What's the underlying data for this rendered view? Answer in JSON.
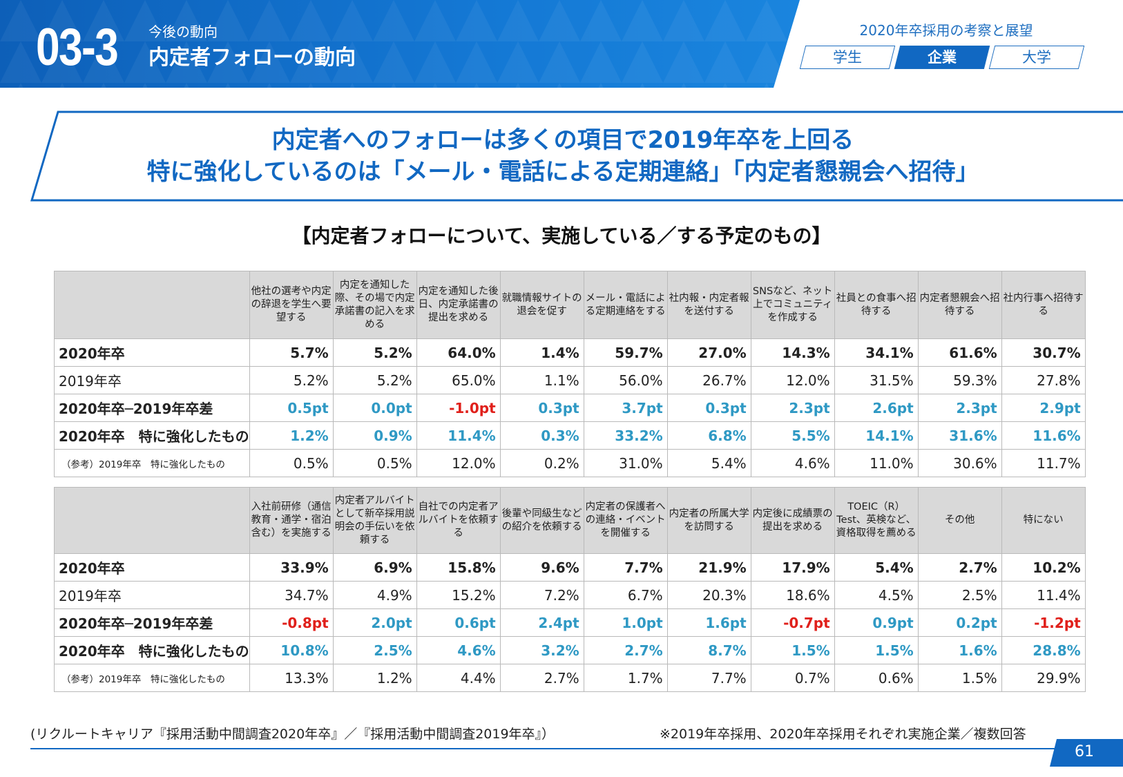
{
  "header": {
    "section_number": "03-3",
    "section_subtitle": "今後の動向",
    "section_title": "内定者フォローの動向",
    "report_title": "2020年卒採用の考察と展望",
    "tabs": [
      {
        "label": "学生",
        "active": false
      },
      {
        "label": "企業",
        "active": true
      },
      {
        "label": "大学",
        "active": false
      }
    ],
    "brand_color": "#1168c2"
  },
  "headline": {
    "line1": "内定者へのフォローは多くの項目で2019年卒を上回る",
    "line2": "特に強化しているのは「メール・電話による定期連絡」「内定者懇親会へ招待」"
  },
  "table_caption": "【内定者フォローについて、実施している／する予定のもの】",
  "tables": [
    {
      "columns": [
        "他社の選考や内定の辞退を学生へ要望する",
        "内定を通知した際、その場で内定承諾書の記入を求める",
        "内定を通知した後日、内定承諾書の提出を求める",
        "就職情報サイトの退会を促す",
        "メール・電話による定期連絡をする",
        "社内報・内定者報を送付する",
        "SNSなど、ネット上でコミュニティを作成する",
        "社員との食事へ招待する",
        "内定者懇親会へ招待する",
        "社内行事へ招待する"
      ],
      "rows": [
        {
          "label": "2020年卒",
          "style": "bold",
          "values": [
            "5.7%",
            "5.2%",
            "64.0%",
            "1.4%",
            "59.7%",
            "27.0%",
            "14.3%",
            "34.1%",
            "61.6%",
            "30.7%"
          ]
        },
        {
          "label": "2019年卒",
          "style": "normal",
          "values": [
            "5.2%",
            "5.2%",
            "65.0%",
            "1.1%",
            "56.0%",
            "26.7%",
            "12.0%",
            "31.5%",
            "59.3%",
            "27.8%"
          ]
        },
        {
          "label": "2020年卒─2019年卒差",
          "style": "diff",
          "values": [
            "0.5pt",
            "0.0pt",
            "-1.0pt",
            "0.3pt",
            "3.7pt",
            "0.3pt",
            "2.3pt",
            "2.6pt",
            "2.3pt",
            "2.9pt"
          ]
        },
        {
          "label": "2020年卒　特に強化したもの",
          "style": "strong",
          "values": [
            "1.2%",
            "0.9%",
            "11.4%",
            "0.3%",
            "33.2%",
            "6.8%",
            "5.5%",
            "14.1%",
            "31.6%",
            "11.6%"
          ]
        },
        {
          "label": "（参考）2019年卒　特に強化したもの",
          "style": "ref",
          "values": [
            "0.5%",
            "0.5%",
            "12.0%",
            "0.2%",
            "31.0%",
            "5.4%",
            "4.6%",
            "11.0%",
            "30.6%",
            "11.7%"
          ]
        }
      ]
    },
    {
      "columns": [
        "入社前研修（通信教育・通学・宿泊含む）を実施する",
        "内定者アルバイトとして新卒採用説明会の手伝いを依頼する",
        "自社での内定者アルバイトを依頼する",
        "後輩や同級生などの紹介を依頼する",
        "内定者の保護者への連絡・イベントを開催する",
        "内定者の所属大学を訪問する",
        "内定後に成績票の提出を求める",
        "TOEIC（R）Test、英検など、資格取得を薦める",
        "その他",
        "特にない"
      ],
      "rows": [
        {
          "label": "2020年卒",
          "style": "bold",
          "values": [
            "33.9%",
            "6.9%",
            "15.8%",
            "9.6%",
            "7.7%",
            "21.9%",
            "17.9%",
            "5.4%",
            "2.7%",
            "10.2%"
          ]
        },
        {
          "label": "2019年卒",
          "style": "normal",
          "values": [
            "34.7%",
            "4.9%",
            "15.2%",
            "7.2%",
            "6.7%",
            "20.3%",
            "18.6%",
            "4.5%",
            "2.5%",
            "11.4%"
          ]
        },
        {
          "label": "2020年卒─2019年卒差",
          "style": "diff",
          "values": [
            "-0.8pt",
            "2.0pt",
            "0.6pt",
            "2.4pt",
            "1.0pt",
            "1.6pt",
            "-0.7pt",
            "0.9pt",
            "0.2pt",
            "-1.2pt"
          ]
        },
        {
          "label": "2020年卒　特に強化したもの",
          "style": "strong",
          "values": [
            "10.8%",
            "2.5%",
            "4.6%",
            "3.2%",
            "2.7%",
            "8.7%",
            "1.5%",
            "1.5%",
            "1.6%",
            "28.8%"
          ]
        },
        {
          "label": "（参考）2019年卒　特に強化したもの",
          "style": "ref",
          "values": [
            "13.3%",
            "1.2%",
            "4.4%",
            "2.7%",
            "1.7%",
            "7.7%",
            "0.7%",
            "0.6%",
            "1.5%",
            "29.9%"
          ]
        }
      ]
    }
  ],
  "colors": {
    "positive": "#2f99c4",
    "negative": "#e0201b",
    "header_bg": "#d9d9d9"
  },
  "footer": {
    "source": "(リクルートキャリア『採用活動中間調査2020年卒』／『採用活動中間調査2019年卒』）",
    "note": "※2019年卒採用、2020年卒採用それぞれ実施企業／複数回答",
    "page_number": "61"
  }
}
